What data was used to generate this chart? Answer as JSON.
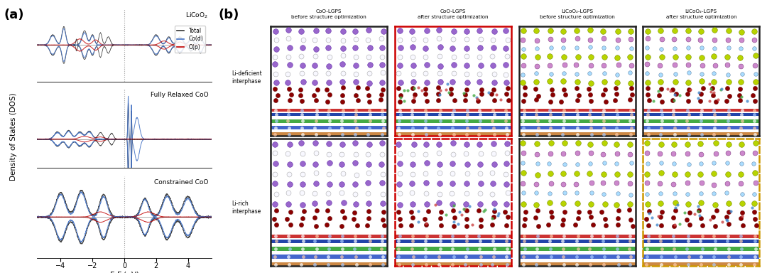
{
  "panel_a_label": "(a)",
  "panel_b_label": "(b)",
  "ylabel": "Density of States (DOS)",
  "xlabel": "E-E$_f$(eV)",
  "xlim": [
    -5.5,
    5.5
  ],
  "subplot1_title": "LiCoO$_2$",
  "subplot2_title": "Fully Relaxed CoO",
  "subplot3_title": "Constrained CoO",
  "legend_total": "Total",
  "legend_cod": "Co(d)",
  "legend_op": "O(p)",
  "color_total": "#333333",
  "color_cod": "#4472C4",
  "color_op": "#C00000",
  "vline_color": "#999999",
  "bg_color": "#ffffff",
  "panel_b_col_titles": [
    "CoO-LGPS\nbefore structure optimization",
    "CoO-LGPS\nafter structure optimization",
    "LiCoO₂-LGPS\nbefore structure optimization",
    "LiCoO₂-LGPS\nafter structure optimization"
  ],
  "panel_b_row_labels": [
    "Li-deficient\ninterphase",
    "Li-rich\ninterphase"
  ],
  "box_border_colors": [
    [
      "#222222",
      "#CC0000",
      "#222222",
      "#222222"
    ],
    [
      "#222222",
      "#CC0000",
      "#222222",
      "#CC9900"
    ]
  ],
  "box_linestyles": [
    [
      "solid",
      "solid",
      "solid",
      "solid"
    ],
    [
      "solid",
      "dashed",
      "solid",
      "dashed"
    ]
  ]
}
